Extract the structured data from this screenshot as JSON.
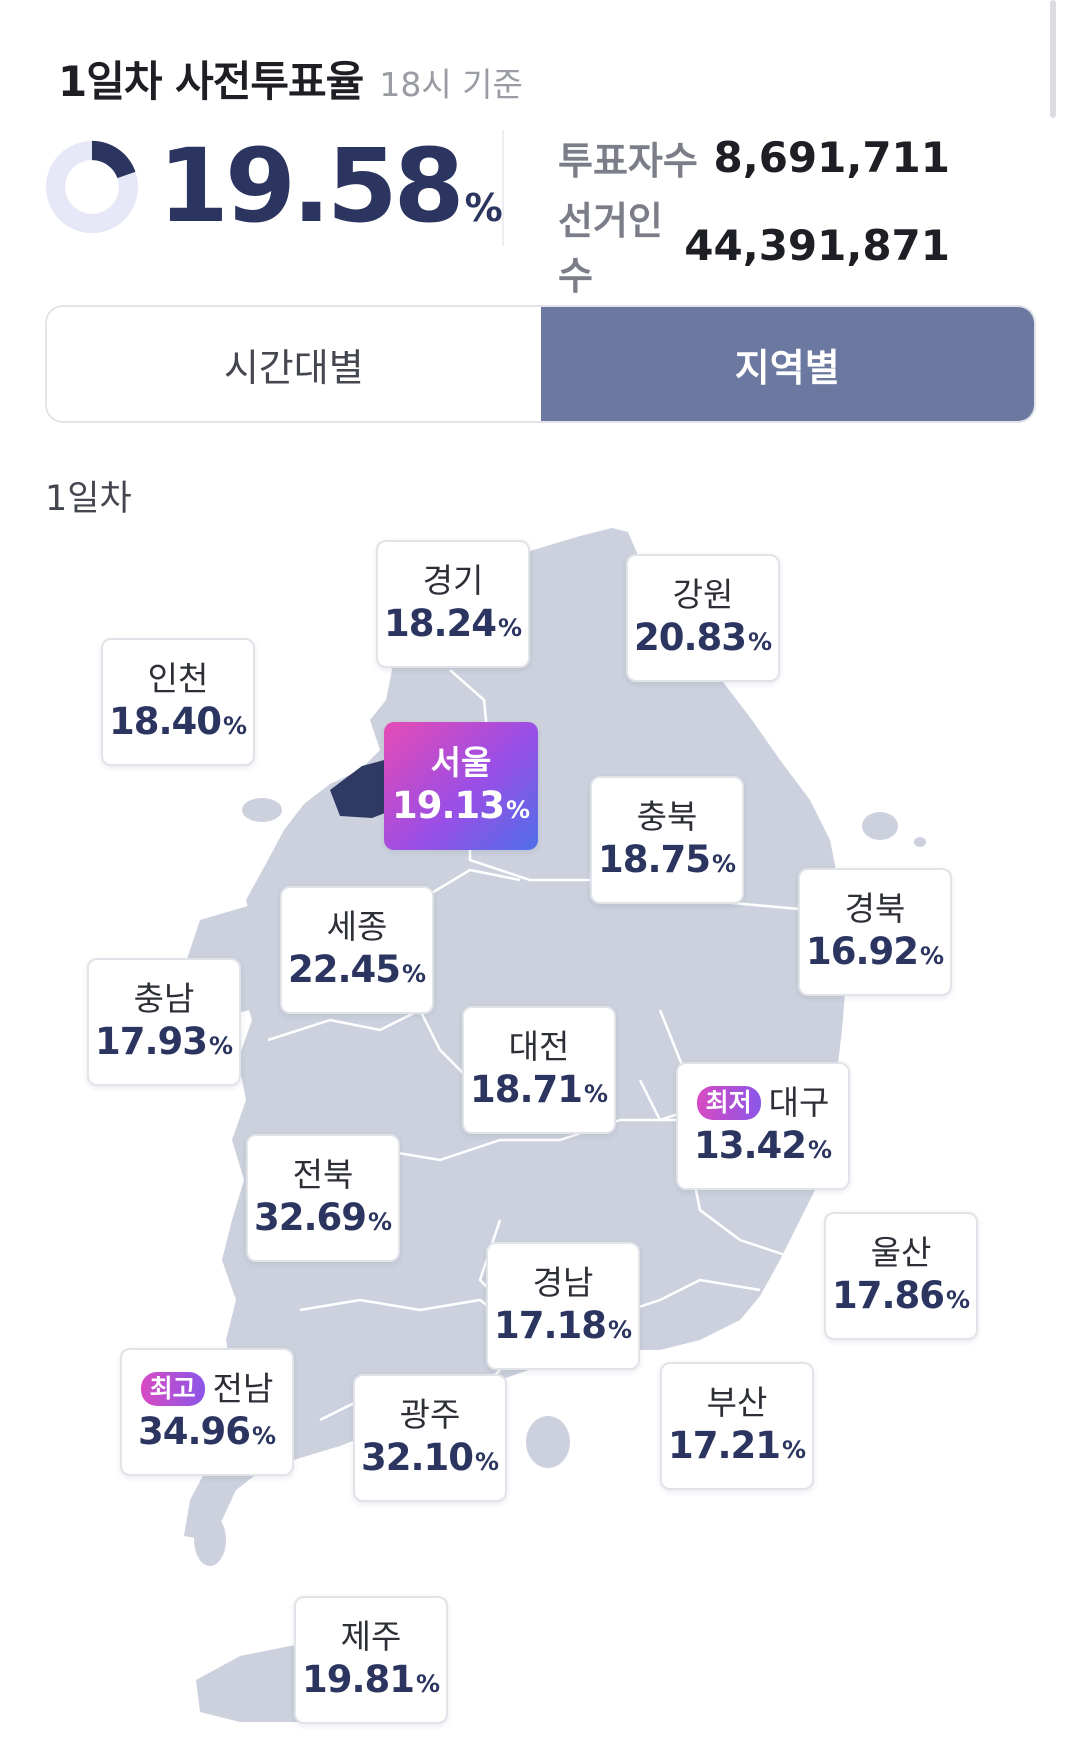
{
  "header": {
    "title": "1일차 사전투표율",
    "subtitle": "18시 기준"
  },
  "turnout": {
    "rate": "19.58",
    "unit": "%",
    "rate_fraction": 0.1958,
    "accent": "#2b3560",
    "ring_bg": "#e6e8f7"
  },
  "stats": [
    {
      "label": "투표자수",
      "value": "8,691,711"
    },
    {
      "label": "선거인수",
      "value": "44,391,871"
    }
  ],
  "tabs": [
    {
      "label": "시간대별",
      "active": false
    },
    {
      "label": "지역별",
      "active": true
    }
  ],
  "day_label": "1일차",
  "regions": [
    {
      "name": "경기",
      "rate": "18.24",
      "unit": "%"
    },
    {
      "name": "강원",
      "rate": "20.83",
      "unit": "%"
    },
    {
      "name": "인천",
      "rate": "18.40",
      "unit": "%"
    },
    {
      "name": "서울",
      "rate": "19.13",
      "unit": "%",
      "highlight": true
    },
    {
      "name": "충북",
      "rate": "18.75",
      "unit": "%"
    },
    {
      "name": "경북",
      "rate": "16.92",
      "unit": "%"
    },
    {
      "name": "세종",
      "rate": "22.45",
      "unit": "%"
    },
    {
      "name": "충남",
      "rate": "17.93",
      "unit": "%"
    },
    {
      "name": "대전",
      "rate": "18.71",
      "unit": "%"
    },
    {
      "name": "대구",
      "rate": "13.42",
      "unit": "%",
      "badge": "최저"
    },
    {
      "name": "전북",
      "rate": "32.69",
      "unit": "%"
    },
    {
      "name": "울산",
      "rate": "17.86",
      "unit": "%"
    },
    {
      "name": "경남",
      "rate": "17.18",
      "unit": "%"
    },
    {
      "name": "전남",
      "rate": "34.96",
      "unit": "%",
      "badge": "최고"
    },
    {
      "name": "광주",
      "rate": "32.10",
      "unit": "%"
    },
    {
      "name": "부산",
      "rate": "17.21",
      "unit": "%"
    },
    {
      "name": "제주",
      "rate": "19.81",
      "unit": "%"
    }
  ],
  "colors": {
    "map_fill": "#ccd1dd",
    "seoul_fill": "#2f3a64",
    "tab_active": "#6b789f"
  }
}
